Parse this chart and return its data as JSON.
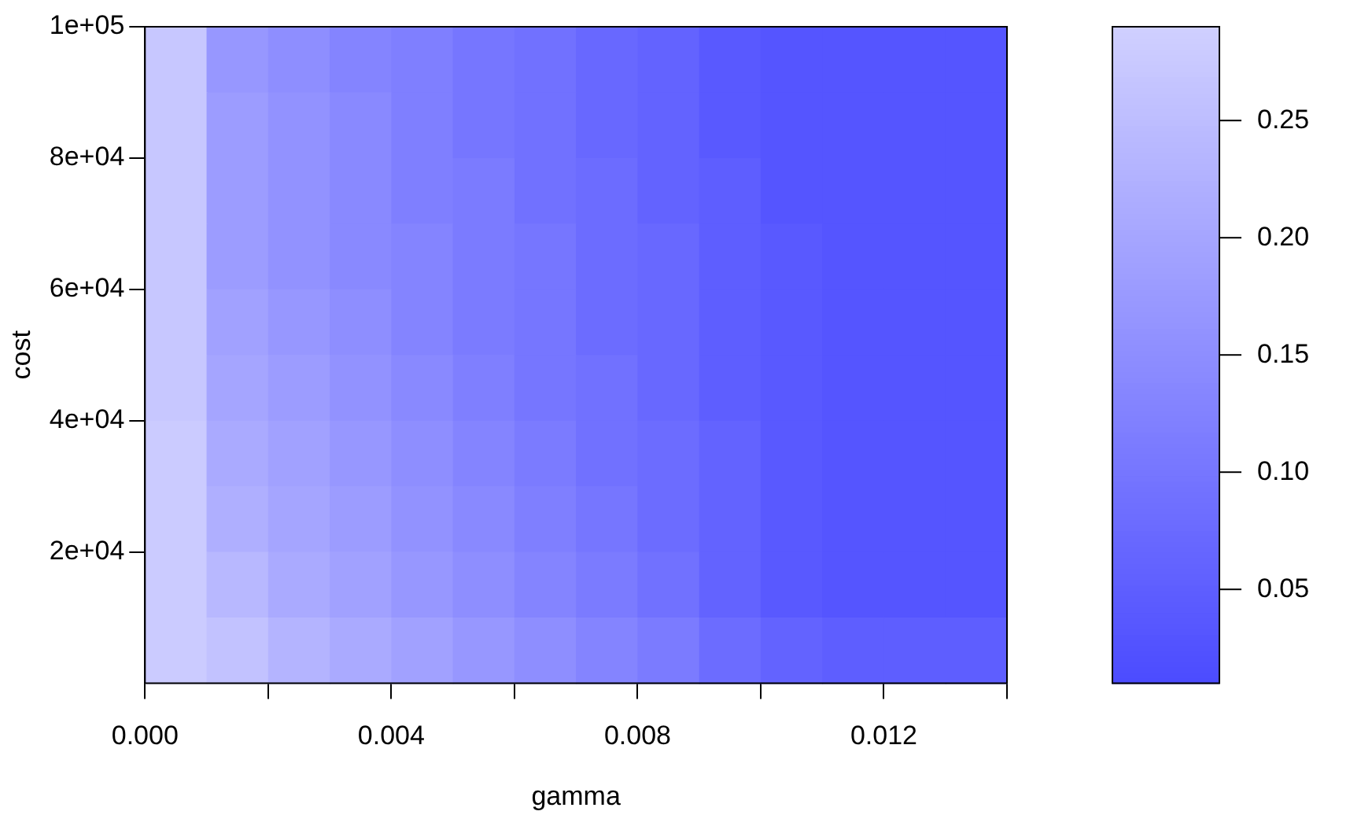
{
  "chart_data": {
    "type": "heatmap",
    "xlabel": "gamma",
    "ylabel": "cost",
    "xlim": [
      0,
      0.014
    ],
    "xticks": [
      {
        "value": 0,
        "label": "0.000"
      },
      {
        "value": 0.002,
        "label": null
      },
      {
        "value": 0.004,
        "label": "0.004"
      },
      {
        "value": 0.006,
        "label": null
      },
      {
        "value": 0.008,
        "label": "0.008"
      },
      {
        "value": 0.01,
        "label": null
      },
      {
        "value": 0.012,
        "label": "0.012"
      },
      {
        "value": 0.014,
        "label": null
      }
    ],
    "ylim": [
      0,
      100000
    ],
    "yticks": [
      {
        "value": 20000,
        "label": "2e+04"
      },
      {
        "value": 40000,
        "label": "4e+04"
      },
      {
        "value": 60000,
        "label": "6e+04"
      },
      {
        "value": 80000,
        "label": "8e+04"
      },
      {
        "value": 100000,
        "label": "1e+05"
      }
    ],
    "cells": [
      [
        0.27,
        0.17,
        0.15,
        0.13,
        0.12,
        0.1,
        0.09,
        0.07,
        0.06,
        0.04,
        0.03,
        0.03,
        0.03,
        0.03
      ],
      [
        0.27,
        0.18,
        0.16,
        0.14,
        0.12,
        0.1,
        0.09,
        0.07,
        0.06,
        0.04,
        0.03,
        0.03,
        0.03,
        0.03
      ],
      [
        0.27,
        0.18,
        0.16,
        0.14,
        0.12,
        0.11,
        0.09,
        0.08,
        0.06,
        0.05,
        0.03,
        0.03,
        0.03,
        0.03
      ],
      [
        0.27,
        0.18,
        0.16,
        0.14,
        0.13,
        0.11,
        0.1,
        0.08,
        0.07,
        0.05,
        0.04,
        0.03,
        0.03,
        0.03
      ],
      [
        0.27,
        0.19,
        0.17,
        0.15,
        0.13,
        0.11,
        0.1,
        0.08,
        0.07,
        0.05,
        0.04,
        0.03,
        0.03,
        0.03
      ],
      [
        0.27,
        0.2,
        0.18,
        0.16,
        0.14,
        0.12,
        0.1,
        0.09,
        0.07,
        0.05,
        0.04,
        0.03,
        0.03,
        0.03
      ],
      [
        0.28,
        0.21,
        0.19,
        0.17,
        0.15,
        0.13,
        0.11,
        0.09,
        0.08,
        0.06,
        0.04,
        0.03,
        0.03,
        0.03
      ],
      [
        0.28,
        0.22,
        0.2,
        0.18,
        0.16,
        0.14,
        0.12,
        0.1,
        0.08,
        0.06,
        0.04,
        0.03,
        0.03,
        0.03
      ],
      [
        0.28,
        0.24,
        0.21,
        0.19,
        0.17,
        0.15,
        0.13,
        0.11,
        0.09,
        0.06,
        0.04,
        0.03,
        0.03,
        0.03
      ],
      [
        0.28,
        0.26,
        0.23,
        0.21,
        0.19,
        0.17,
        0.15,
        0.13,
        0.11,
        0.08,
        0.06,
        0.05,
        0.05,
        0.05
      ]
    ],
    "colors": [
      "#4b4bff",
      "#d0d0ff"
    ],
    "clim": [
      0.01,
      0.29
    ],
    "cticks": [
      {
        "value": 0.05,
        "label": "0.05"
      },
      {
        "value": 0.1,
        "label": "0.10"
      },
      {
        "value": 0.15,
        "label": "0.15"
      },
      {
        "value": 0.2,
        "label": "0.20"
      },
      {
        "value": 0.25,
        "label": "0.25"
      }
    ]
  }
}
